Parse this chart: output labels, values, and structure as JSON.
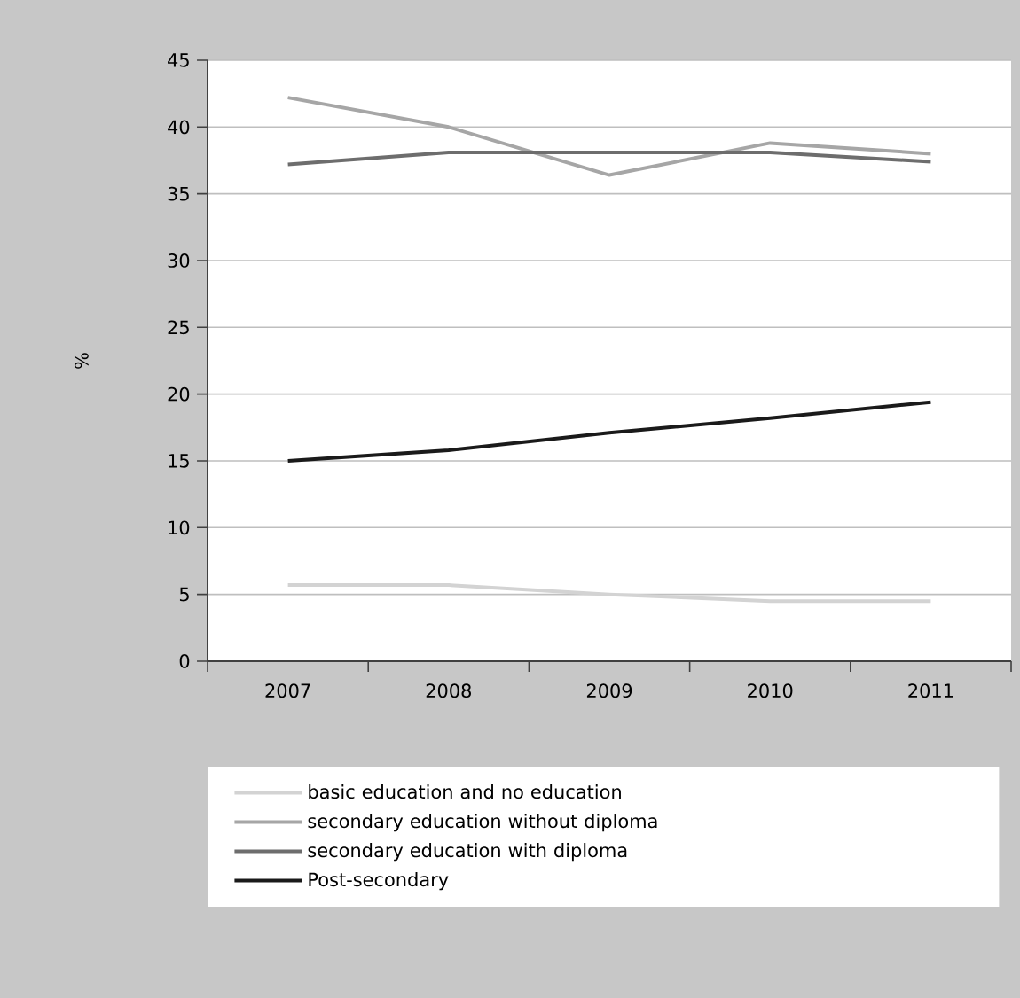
{
  "chart_data": {
    "type": "line",
    "ylabel": "%",
    "categories": [
      "2007",
      "2008",
      "2009",
      "2010",
      "2011"
    ],
    "series": [
      {
        "name": "basic education and no education",
        "color": "#d3d3d3",
        "values": [
          5.7,
          5.7,
          5.0,
          4.5,
          4.5
        ]
      },
      {
        "name": "secondary education without diploma",
        "color": "#a6a6a6",
        "values": [
          42.2,
          40.0,
          36.4,
          38.8,
          38.0
        ]
      },
      {
        "name": "secondary education with diploma",
        "color": "#6d6d6d",
        "values": [
          37.2,
          38.1,
          38.1,
          38.1,
          37.4
        ]
      },
      {
        "name": "Post-secondary",
        "color": "#1a1a1a",
        "values": [
          15.0,
          15.8,
          17.1,
          18.2,
          19.4
        ]
      }
    ],
    "ylim": [
      0,
      45
    ],
    "yticks": [
      0,
      5,
      10,
      15,
      20,
      25,
      30,
      35,
      40,
      45
    ],
    "grid": "y",
    "legend": "bottom",
    "marker": "none",
    "line_style": "solid"
  }
}
